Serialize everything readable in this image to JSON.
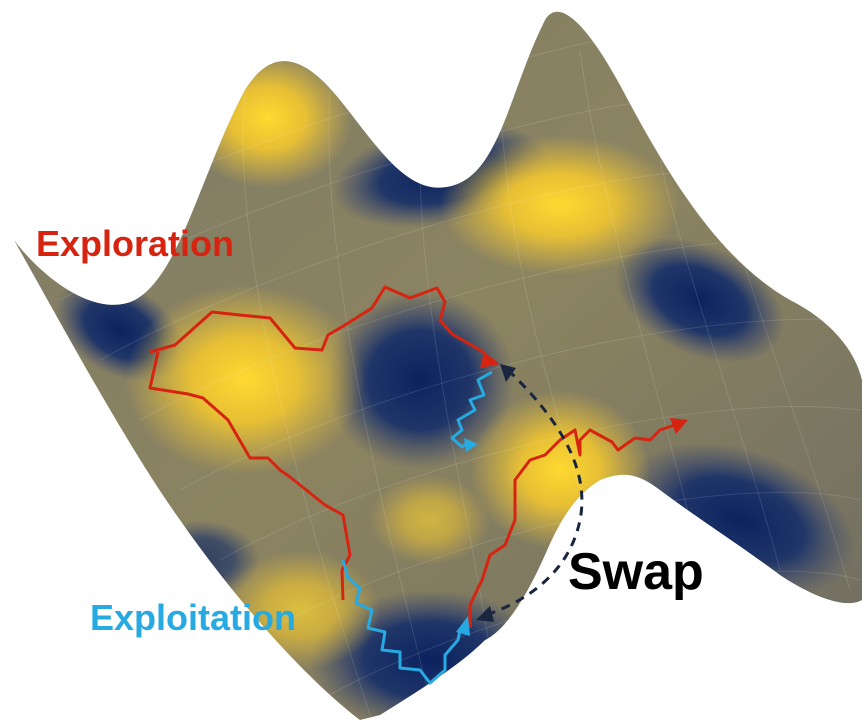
{
  "labels": {
    "exploration": "Exploration",
    "exploitation": "Exploitation",
    "swap": "Swap"
  },
  "colors": {
    "exploration": "#d62410",
    "exploitation": "#27aae1",
    "swap": "#000000",
    "swap_arrow": "#1a2540",
    "surface_peak": "#f5cf2a",
    "surface_mid": "#b09a5e",
    "surface_valley": "#13285a"
  }
}
